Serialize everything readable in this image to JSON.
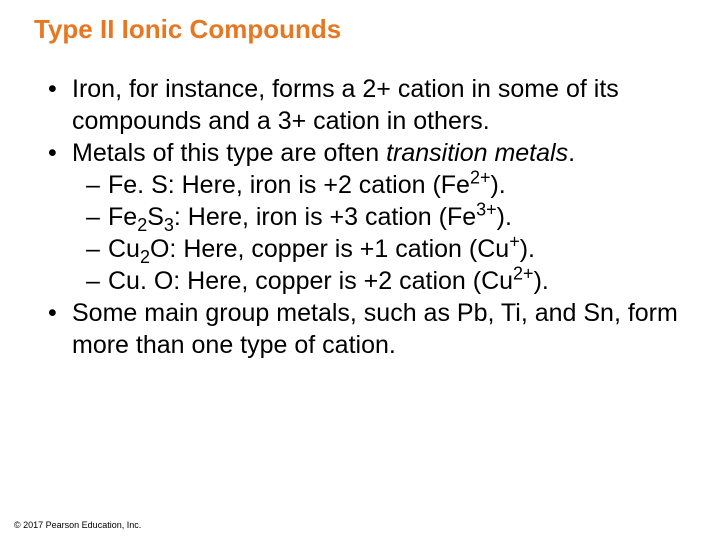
{
  "title": "Type II Ionic Compounds",
  "bullets": {
    "b1": "Iron, for instance, forms a 2+ cation in some of its compounds and a 3+ cation in others.",
    "b2_pre": "Metals of this type are often ",
    "b2_italic": "transition metals",
    "b2_post": ".",
    "s1_pre": "Fe. S: Here, iron is +2 cation (Fe",
    "s1_sup": "2+",
    "s1_post": ").",
    "s2_a": "Fe",
    "s2_sub1": "2",
    "s2_b": "S",
    "s2_sub2": "3",
    "s2_c": ": Here, iron is +3 cation (Fe",
    "s2_sup": "3+",
    "s2_d": ").",
    "s3_a": "Cu",
    "s3_sub1": "2",
    "s3_b": "O: Here, copper is +1 cation (Cu",
    "s3_sup": "+",
    "s3_c": ").",
    "s4_a": "Cu. O: Here, copper is +2 cation (Cu",
    "s4_sup": "2+",
    "s4_b": ").",
    "b3": "Some main group metals, such as Pb, Ti, and Sn, form more than one type of cation."
  },
  "markers": {
    "dot": "•",
    "dash": "–"
  },
  "copyright": "© 2017 Pearson Education, Inc.",
  "colors": {
    "title": "#e87722",
    "text": "#000000",
    "bg": "#ffffff"
  },
  "fontsizes": {
    "title_pt": 26,
    "body_pt": 25,
    "copyright_pt": 9
  }
}
